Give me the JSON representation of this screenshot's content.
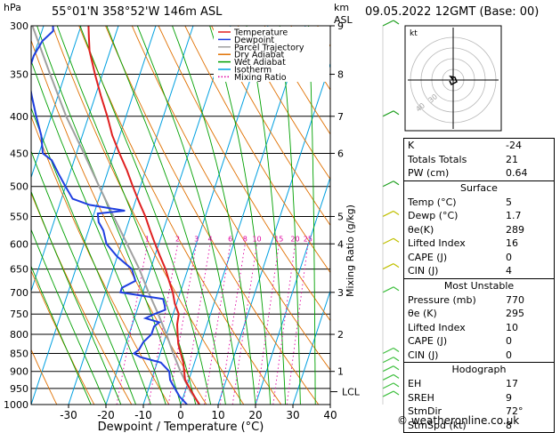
{
  "header": {
    "hpa_label": "hPa",
    "location": "55°01'N  358°52'W  146m  ASL",
    "km_label": "km",
    "asl_label": "ASL",
    "datetime": "09.05.2022  12GMT  (Base: 00)"
  },
  "axes": {
    "xlabel": "Dewpoint / Temperature (°C)",
    "mixing_ratio_label": "Mixing Ratio (g/kg)",
    "lcl_label": "LCL"
  },
  "legend": [
    {
      "label": "Temperature",
      "color": "#e02020"
    },
    {
      "label": "Dewpoint",
      "color": "#1f3fe0"
    },
    {
      "label": "Parcel Trajectory",
      "color": "#a0a0a0"
    },
    {
      "label": "Dry Adiabat",
      "color": "#e07000"
    },
    {
      "label": "Wet Adiabat",
      "color": "#00a000"
    },
    {
      "label": "Isotherm",
      "color": "#00a0e0"
    },
    {
      "label": "Mixing Ratio",
      "color": "#e000a0"
    }
  ],
  "chart_data": {
    "type": "line",
    "title": "",
    "xlabel": "Dewpoint / Temperature (°C)",
    "ylabel": "hPa",
    "pressure_levels": [
      300,
      350,
      400,
      450,
      500,
      550,
      600,
      650,
      700,
      750,
      800,
      850,
      900,
      950,
      1000
    ],
    "pressure_labels": [
      "300",
      "350",
      "400",
      "450",
      "500",
      "550",
      "600",
      "650",
      "700",
      "750",
      "800",
      "850",
      "900",
      "950",
      "1000"
    ],
    "km_ticks": [
      {
        "p": 300,
        "km": "9"
      },
      {
        "p": 350,
        "km": "8"
      },
      {
        "p": 400,
        "km": "7"
      },
      {
        "p": 450,
        "km": "6"
      },
      {
        "p": 550,
        "km": "5"
      },
      {
        "p": 600,
        "km": "4"
      },
      {
        "p": 700,
        "km": "3"
      },
      {
        "p": 800,
        "km": "2"
      },
      {
        "p": 900,
        "km": "1"
      }
    ],
    "x_ticks": [
      -30,
      -20,
      -10,
      0,
      10,
      20,
      30,
      40
    ],
    "xlim": [
      -40,
      40
    ],
    "ylim": [
      300,
      1000
    ],
    "mixing_ratio_ticks": [
      "1",
      "2",
      "3",
      "4",
      "6",
      "8",
      "10",
      "15",
      "20",
      "25"
    ],
    "mixing_ratio_values": [
      1,
      2,
      3,
      4,
      6,
      8,
      10,
      15,
      20,
      25
    ],
    "lcl_pressure": 960,
    "series": [
      {
        "name": "Temperature",
        "color": "#e02020",
        "points": [
          [
            1000,
            5
          ],
          [
            975,
            3
          ],
          [
            950,
            1
          ],
          [
            925,
            -1
          ],
          [
            900,
            -2
          ],
          [
            875,
            -3
          ],
          [
            850,
            -4.5
          ],
          [
            825,
            -6
          ],
          [
            800,
            -7
          ],
          [
            775,
            -8
          ],
          [
            750,
            -8.5
          ],
          [
            725,
            -10.5
          ],
          [
            700,
            -12
          ],
          [
            675,
            -14
          ],
          [
            650,
            -16
          ],
          [
            625,
            -18.5
          ],
          [
            600,
            -21
          ],
          [
            575,
            -23.5
          ],
          [
            550,
            -26
          ],
          [
            525,
            -29
          ],
          [
            500,
            -32
          ],
          [
            475,
            -35
          ],
          [
            450,
            -38.5
          ],
          [
            425,
            -42
          ],
          [
            400,
            -45
          ],
          [
            375,
            -48.5
          ],
          [
            350,
            -52
          ],
          [
            325,
            -55.5
          ],
          [
            310,
            -57
          ],
          [
            300,
            -58
          ]
        ]
      },
      {
        "name": "Dewpoint",
        "color": "#1f3fe0",
        "points": [
          [
            1000,
            1.7
          ],
          [
            975,
            -1
          ],
          [
            950,
            -3
          ],
          [
            925,
            -5
          ],
          [
            900,
            -6
          ],
          [
            875,
            -9
          ],
          [
            860,
            -15
          ],
          [
            850,
            -17
          ],
          [
            840,
            -16
          ],
          [
            820,
            -15.5
          ],
          [
            800,
            -14
          ],
          [
            780,
            -14
          ],
          [
            770,
            -13
          ],
          [
            760,
            -17
          ],
          [
            750,
            -15
          ],
          [
            740,
            -12.5
          ],
          [
            730,
            -13
          ],
          [
            715,
            -14
          ],
          [
            700,
            -26
          ],
          [
            690,
            -26
          ],
          [
            675,
            -23
          ],
          [
            650,
            -25
          ],
          [
            625,
            -30
          ],
          [
            600,
            -34
          ],
          [
            575,
            -36
          ],
          [
            560,
            -38
          ],
          [
            545,
            -39
          ],
          [
            540,
            -32
          ],
          [
            530,
            -42
          ],
          [
            520,
            -47
          ],
          [
            500,
            -50
          ],
          [
            480,
            -53
          ],
          [
            460,
            -56
          ],
          [
            450,
            -59
          ],
          [
            425,
            -61
          ],
          [
            400,
            -64
          ],
          [
            375,
            -67
          ],
          [
            350,
            -70
          ],
          [
            330,
            -70
          ],
          [
            315,
            -69
          ],
          [
            305,
            -67
          ],
          [
            300,
            -67.5
          ]
        ]
      },
      {
        "name": "Parcel Trajectory",
        "color": "#a0a0a0",
        "points": [
          [
            1000,
            5
          ],
          [
            960,
            1.5
          ],
          [
            900,
            -3
          ],
          [
            850,
            -6.5
          ],
          [
            800,
            -10
          ],
          [
            750,
            -14
          ],
          [
            700,
            -18.5
          ],
          [
            650,
            -23
          ],
          [
            600,
            -28.5
          ],
          [
            550,
            -34.5
          ],
          [
            500,
            -41
          ],
          [
            450,
            -48
          ],
          [
            400,
            -56
          ],
          [
            350,
            -64
          ],
          [
            300,
            -73
          ]
        ]
      }
    ]
  },
  "hodograph": {
    "label": "kt",
    "ring_labels": [
      "40",
      "30"
    ]
  },
  "indices_table": {
    "rows": [
      {
        "label": "K",
        "value": "-24"
      },
      {
        "label": "Totals Totals",
        "value": "21"
      },
      {
        "label": "PW (cm)",
        "value": "0.64"
      }
    ]
  },
  "surface_table": {
    "title": "Surface",
    "rows": [
      {
        "label": "Temp (°C)",
        "value": "5"
      },
      {
        "label": "Dewp (°C)",
        "value": "1.7"
      },
      {
        "label": "θe(K)",
        "value": "289"
      },
      {
        "label": "Lifted Index",
        "value": "16"
      },
      {
        "label": "CAPE (J)",
        "value": "0"
      },
      {
        "label": "CIN (J)",
        "value": "4"
      }
    ]
  },
  "most_unstable_table": {
    "title": "Most Unstable",
    "rows": [
      {
        "label": "Pressure (mb)",
        "value": "770"
      },
      {
        "label": "θe (K)",
        "value": "295"
      },
      {
        "label": "Lifted Index",
        "value": "10"
      },
      {
        "label": "CAPE (J)",
        "value": "0"
      },
      {
        "label": "CIN (J)",
        "value": "0"
      }
    ]
  },
  "hodograph_table": {
    "title": "Hodograph",
    "rows": [
      {
        "label": "EH",
        "value": "17"
      },
      {
        "label": "SREH",
        "value": "9"
      },
      {
        "label": "StmDir",
        "value": "72°"
      },
      {
        "label": "StmSpd (kt)",
        "value": "8"
      }
    ]
  },
  "footer": {
    "copyright": "© weatheronline.co.uk"
  }
}
